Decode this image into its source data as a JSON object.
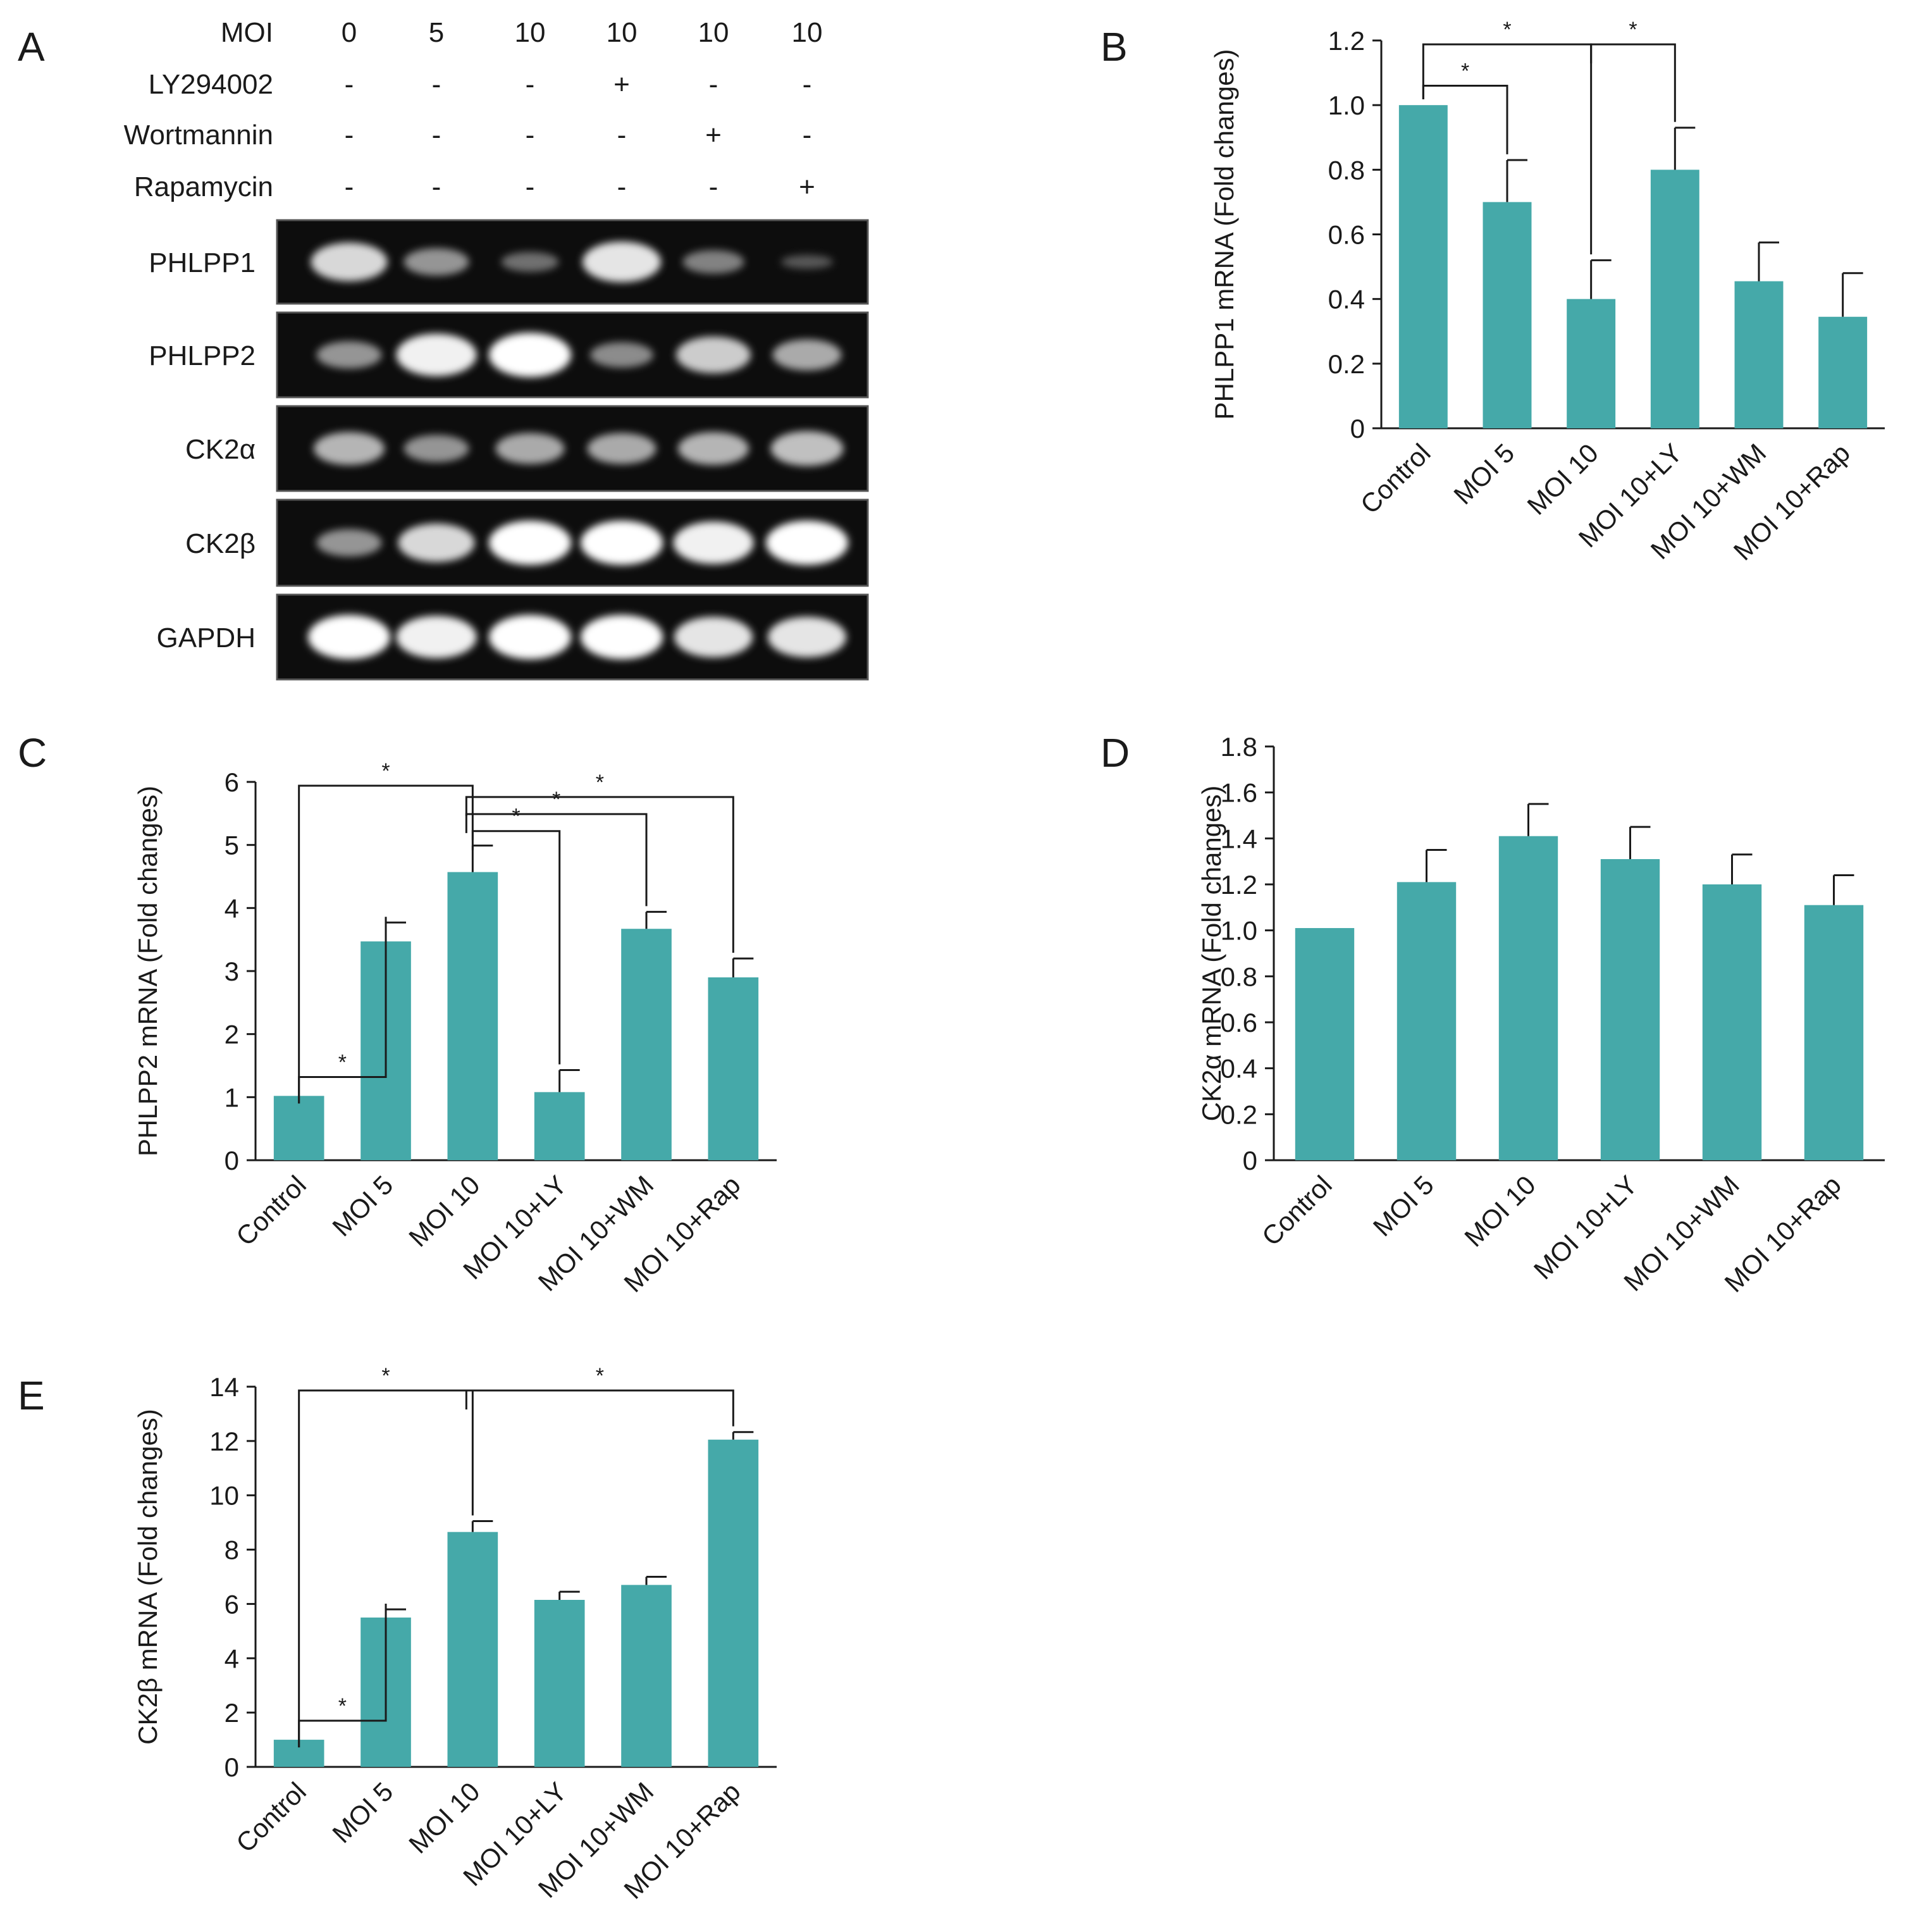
{
  "panel_a": {
    "letter": "A",
    "rows": [
      {
        "label": "MOI",
        "values": [
          "0",
          "5",
          "10",
          "10",
          "10",
          "10"
        ]
      },
      {
        "label": "LY294002",
        "values": [
          "-",
          "-",
          "-",
          "+",
          "-",
          "-"
        ]
      },
      {
        "label": "Wortmannin",
        "values": [
          "-",
          "-",
          "-",
          "-",
          "+",
          "-"
        ]
      },
      {
        "label": "Rapamycin",
        "values": [
          "-",
          "-",
          "-",
          "-",
          "-",
          "+"
        ]
      }
    ],
    "gels": [
      {
        "label": "PHLPP1",
        "intensity": [
          0.85,
          0.55,
          0.35,
          0.9,
          0.45,
          0.2
        ]
      },
      {
        "label": "PHLPP2",
        "intensity": [
          0.55,
          0.95,
          1.0,
          0.5,
          0.8,
          0.65
        ]
      },
      {
        "label": "CK2α",
        "intensity": [
          0.7,
          0.55,
          0.65,
          0.65,
          0.7,
          0.75
        ]
      },
      {
        "label": "CK2β",
        "intensity": [
          0.55,
          0.85,
          1.0,
          1.0,
          0.95,
          1.0
        ]
      },
      {
        "label": "GAPDH",
        "intensity": [
          1.0,
          0.95,
          1.0,
          1.0,
          0.9,
          0.9
        ]
      }
    ]
  },
  "chart_data": [
    {
      "id": "B",
      "type": "bar",
      "categories": [
        "Control",
        "MOI 5",
        "MOI 10",
        "MOI 10+LY",
        "MOI 10+WM",
        "MOI 10+Rap"
      ],
      "values": [
        1.0,
        0.7,
        0.4,
        0.8,
        0.455,
        0.345
      ],
      "errors": [
        0,
        0.13,
        0.12,
        0.13,
        0.12,
        0.135
      ],
      "ylabel": "PHLPP1 mRNA (Fold changes)",
      "ylim": [
        0,
        1.2
      ],
      "ticks": [
        "0",
        "0.2",
        "0.4",
        "0.6",
        "0.8",
        "1.0",
        "1.2"
      ],
      "color": "#45a9a9",
      "significance": [
        {
          "from": 0,
          "to": 1,
          "label": "*"
        },
        {
          "from": 0,
          "to": 2,
          "label": "*"
        },
        {
          "from": 2,
          "to": 3,
          "label": "*"
        }
      ]
    },
    {
      "id": "C",
      "type": "bar",
      "categories": [
        "Control",
        "MOI 5",
        "MOI 10",
        "MOI 10+LY",
        "MOI 10+WM",
        "MOI 10+Rap"
      ],
      "values": [
        1.02,
        3.47,
        4.57,
        1.08,
        3.67,
        2.9
      ],
      "errors": [
        0,
        0.3,
        0.42,
        0.35,
        0.27,
        0.3
      ],
      "ylabel": "PHLPP2 mRNA (Fold changes)",
      "ylim": [
        0,
        6
      ],
      "ticks": [
        "0",
        "1",
        "2",
        "3",
        "4",
        "5",
        "6"
      ],
      "color": "#45a9a9",
      "significance": [
        {
          "from": 0,
          "to": 1,
          "label": "*"
        },
        {
          "from": 0,
          "to": 2,
          "label": "*"
        },
        {
          "from": 2,
          "to": 3,
          "label": "*"
        },
        {
          "from": 2,
          "to": 4,
          "label": "*"
        },
        {
          "from": 2,
          "to": 5,
          "label": "*"
        }
      ]
    },
    {
      "id": "D",
      "type": "bar",
      "categories": [
        "Control",
        "MOI 5",
        "MOI 10",
        "MOI 10+LY",
        "MOI 10+WM",
        "MOI 10+Rap"
      ],
      "values": [
        1.01,
        1.21,
        1.41,
        1.31,
        1.2,
        1.11
      ],
      "errors": [
        0,
        0.14,
        0.14,
        0.14,
        0.13,
        0.13
      ],
      "ylabel": "CK2α mRNA (Fold changes)",
      "ylim": [
        0,
        1.8
      ],
      "ticks": [
        "0",
        "0.2",
        "0.4",
        "0.6",
        "0.8",
        "1.0",
        "1.2",
        "1.4",
        "1.6",
        "1.8"
      ],
      "color": "#45a9a9",
      "significance": []
    },
    {
      "id": "E",
      "type": "bar",
      "categories": [
        "Control",
        "MOI 5",
        "MOI 10",
        "MOI 10+LY",
        "MOI 10+WM",
        "MOI 10+Rap"
      ],
      "values": [
        1.0,
        5.5,
        8.65,
        6.15,
        6.7,
        12.05
      ],
      "errors": [
        0,
        0.3,
        0.4,
        0.3,
        0.3,
        0.28
      ],
      "ylabel": "CK2β mRNA (Fold changes)",
      "ylim": [
        0,
        14
      ],
      "ticks": [
        "0",
        "2",
        "4",
        "6",
        "8",
        "10",
        "12",
        "14"
      ],
      "color": "#45a9a9",
      "significance": [
        {
          "from": 0,
          "to": 1,
          "label": "*"
        },
        {
          "from": 0,
          "to": 2,
          "label": "*"
        },
        {
          "from": 2,
          "to": 5,
          "label": "*"
        }
      ]
    }
  ]
}
